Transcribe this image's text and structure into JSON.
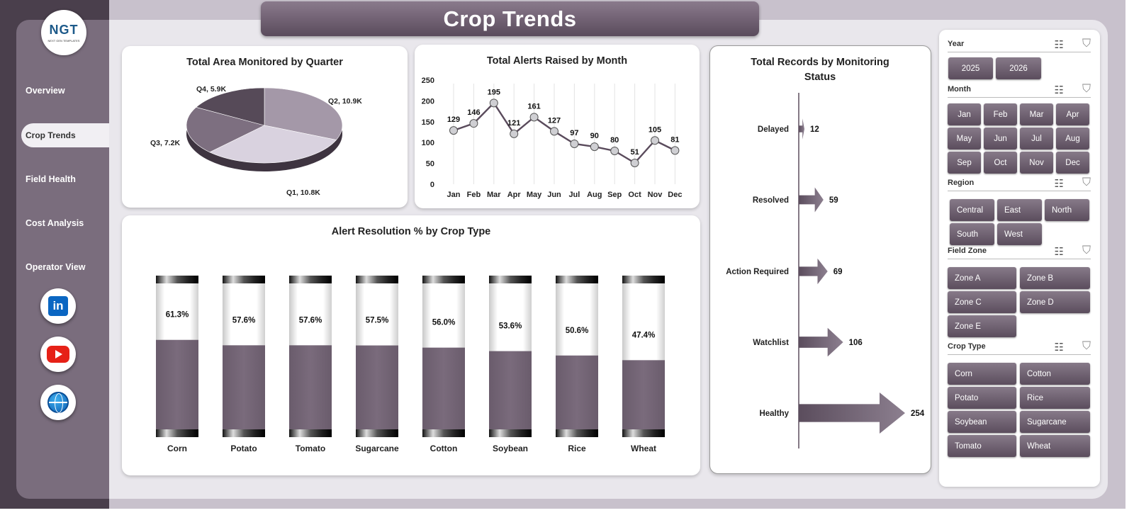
{
  "title": "Crop Trends",
  "logo": {
    "text": "NGT",
    "subtext": "NEXT GEN TEMPLATES"
  },
  "nav": {
    "overview": "Overview",
    "crop_trends": "Crop Trends",
    "field_health": "Field Health",
    "cost_analysis": "Cost Analysis",
    "operator_view": "Operator View"
  },
  "social": {
    "linkedin": "in"
  },
  "slicers": {
    "year": {
      "label": "Year",
      "options": [
        "2025",
        "2026"
      ]
    },
    "month": {
      "label": "Month",
      "options": [
        "Jan",
        "Feb",
        "Mar",
        "Apr",
        "May",
        "Jun",
        "Jul",
        "Aug",
        "Sep",
        "Oct",
        "Nov",
        "Dec"
      ]
    },
    "region": {
      "label": "Region",
      "options": [
        "Central",
        "East",
        "North",
        "South",
        "West"
      ]
    },
    "field_zone": {
      "label": "Field Zone",
      "options": [
        "Zone A",
        "Zone B",
        "Zone C",
        "Zone D",
        "Zone E"
      ]
    },
    "crop_type": {
      "label": "Crop Type",
      "options": [
        "Corn",
        "Cotton",
        "Potato",
        "Rice",
        "Soybean",
        "Sugarcane",
        "Tomato",
        "Wheat"
      ]
    }
  },
  "chart_data": [
    {
      "type": "pie",
      "title": "Total Area Monitored by Quarter",
      "slices": [
        {
          "label": "Q1",
          "value": 10.8,
          "display": "Q1, 10.8K",
          "color": "#d9d2df"
        },
        {
          "label": "Q2",
          "value": 10.9,
          "display": "Q2, 10.9K",
          "color": "#a498a8"
        },
        {
          "label": "Q3",
          "value": 7.2,
          "display": "Q3, 7.2K",
          "color": "#7d6f80"
        },
        {
          "label": "Q4",
          "value": 5.9,
          "display": "Q4, 5.9K",
          "color": "#564a58"
        }
      ]
    },
    {
      "type": "line",
      "title": "Total Alerts Raised by Month",
      "categories": [
        "Jan",
        "Feb",
        "Mar",
        "Apr",
        "May",
        "Jun",
        "Jul",
        "Aug",
        "Sep",
        "Oct",
        "Nov",
        "Dec"
      ],
      "values": [
        129,
        146,
        195,
        121,
        161,
        127,
        97,
        90,
        80,
        51,
        105,
        81
      ],
      "ylim": [
        0,
        250
      ],
      "yticks": [
        0,
        50,
        100,
        150,
        200,
        250
      ]
    },
    {
      "type": "bar",
      "title": "Alert Resolution % by Crop Type",
      "categories": [
        "Corn",
        "Potato",
        "Tomato",
        "Sugarcane",
        "Cotton",
        "Soybean",
        "Rice",
        "Wheat"
      ],
      "values": [
        61.3,
        57.6,
        57.6,
        57.5,
        56.0,
        53.6,
        50.6,
        47.4
      ],
      "labels": [
        "61.3%",
        "57.6%",
        "57.6%",
        "57.5%",
        "56.0%",
        "53.6%",
        "50.6%",
        "47.4%"
      ]
    },
    {
      "type": "bar",
      "title": "Total Records by Monitoring Status",
      "categories": [
        "Delayed",
        "Resolved",
        "Action Required",
        "Watchlist",
        "Healthy"
      ],
      "values": [
        12,
        59,
        69,
        106,
        254
      ]
    }
  ]
}
